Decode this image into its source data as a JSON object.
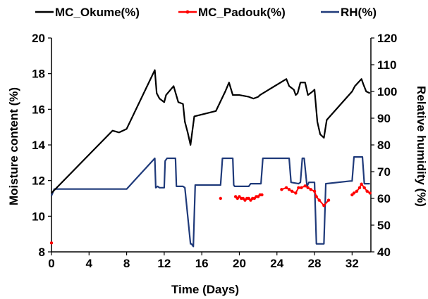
{
  "chart_data": {
    "type": "line",
    "xlabel": "Time (Days)",
    "ylabel_left": "Moisture content (%)",
    "ylabel_right": "Relative humidity (%)",
    "xlim": [
      0,
      34
    ],
    "ylim_left": [
      8,
      20
    ],
    "ylim_right": [
      40,
      120
    ],
    "xticks": [
      0,
      4,
      8,
      12,
      16,
      20,
      24,
      28,
      32
    ],
    "yticks_left": [
      8,
      10,
      12,
      14,
      16,
      18,
      20
    ],
    "yticks_right": [
      40,
      50,
      60,
      70,
      80,
      90,
      100,
      110,
      120
    ],
    "legend_position": "top",
    "series": [
      {
        "name": "MC_Okume(%)",
        "axis": "left",
        "color": "#000000",
        "marker": "none",
        "x": [
          0,
          6.5,
          7.2,
          8,
          11,
          11.2,
          11.5,
          12,
          12.2,
          13,
          13.5,
          14,
          14.2,
          14.5,
          14.8,
          15.2,
          17.5,
          18.5,
          18.9,
          19.3,
          20,
          21,
          21.5,
          22,
          22.2,
          25,
          25.3,
          25.8,
          26,
          26.2,
          26.5,
          27,
          27.3,
          27.8,
          28,
          28.3,
          28.6,
          29,
          29.3,
          32,
          32.3,
          33,
          33.2,
          33.5,
          33.9
        ],
        "y": [
          11.3,
          14.8,
          14.7,
          14.9,
          18.2,
          16.9,
          16.6,
          16.4,
          16.8,
          17.3,
          16.4,
          16.3,
          15.3,
          14.7,
          14.0,
          15.6,
          15.9,
          17.0,
          17.5,
          16.8,
          16.8,
          16.7,
          16.6,
          16.7,
          16.8,
          17.7,
          17.3,
          17.1,
          16.8,
          16.9,
          17.5,
          17.5,
          16.8,
          17.0,
          17.1,
          15.3,
          14.6,
          14.4,
          15.4,
          17.0,
          17.3,
          17.7,
          17.4,
          17.0,
          16.9
        ]
      },
      {
        "name": "MC_Padouk(%)",
        "axis": "left",
        "color": "#ff0000",
        "marker": "dot",
        "x": [
          0,
          18,
          19.6,
          19.8,
          20,
          20.2,
          20.4,
          20.6,
          20.8,
          21,
          21.2,
          21.4,
          21.6,
          21.8,
          22,
          22.2,
          22.4,
          24.5,
          25,
          25.3,
          25.6,
          26,
          26.3,
          26.6,
          27,
          27.3,
          27.6,
          28,
          28.2,
          28.5,
          29,
          29.5,
          32,
          32.2,
          32.5,
          32.8,
          33,
          33.3,
          33.6,
          33.9
        ],
        "y": [
          8.5,
          11.0,
          11.1,
          11.0,
          11.1,
          11.0,
          11.0,
          10.9,
          11.0,
          11.0,
          10.9,
          11.0,
          11.0,
          11.1,
          11.1,
          11.2,
          11.2,
          11.5,
          11.6,
          11.5,
          11.4,
          11.3,
          11.6,
          11.6,
          11.7,
          11.6,
          11.5,
          11.4,
          11.1,
          10.9,
          10.6,
          10.9,
          11.2,
          11.3,
          11.4,
          11.6,
          11.8,
          11.6,
          11.4,
          11.3
        ]
      },
      {
        "name": "RH(%)",
        "axis": "right",
        "color": "#1f3a7a",
        "marker": "none",
        "x": [
          0,
          0.3,
          8,
          11,
          11.1,
          11.3,
          11.5,
          12,
          12.1,
          12.3,
          12.5,
          12.7,
          13.2,
          13.3,
          14,
          14.2,
          14.8,
          14.9,
          15.1,
          15.3,
          18,
          18.2,
          19.3,
          19.4,
          19.5,
          21,
          21.2,
          22.3,
          22.5,
          25.3,
          25.5,
          26.3,
          26.5,
          26.7,
          26.9,
          27.2,
          27.4,
          28,
          28.2,
          29,
          29.2,
          31.8,
          32,
          32.2,
          32.9,
          33.1,
          33.3,
          33.9
        ],
        "y": [
          61,
          63.5,
          63.5,
          75,
          64,
          64.5,
          64,
          64,
          74,
          75,
          75,
          75,
          75,
          64.5,
          64.5,
          64,
          43,
          43,
          42,
          65,
          65,
          75,
          75,
          65,
          64.5,
          64.5,
          65.5,
          65.5,
          75,
          75,
          66,
          65.5,
          66,
          75,
          75,
          64.5,
          66,
          66,
          43,
          43,
          65.5,
          66.5,
          66.5,
          75.5,
          75.5,
          75.5,
          65.5,
          65.5
        ]
      }
    ]
  }
}
